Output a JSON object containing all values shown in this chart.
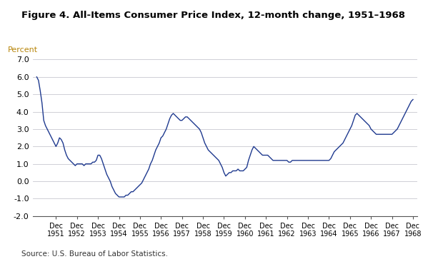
{
  "title": "Figure 4. All-Items Consumer Price Index, 12-month change, 1951–1968",
  "ylabel": "Percent",
  "source": "Source: U.S. Bureau of Labor Statistics.",
  "line_color": "#1f3a8f",
  "background_color": "#ffffff",
  "ylim": [
    -2.0,
    7.0
  ],
  "yticks": [
    -2.0,
    -1.0,
    0.0,
    1.0,
    2.0,
    3.0,
    4.0,
    5.0,
    6.0,
    7.0
  ],
  "ytick_labels": [
    "-2.0",
    "-1.0",
    "0.0",
    "1.0",
    "2.0",
    "3.0",
    "4.0",
    "5.0",
    "6.0",
    "7.0"
  ],
  "xtick_labels": [
    "Dec\n1951",
    "Dec\n1952",
    "Dec\n1953",
    "Dec\n1954",
    "Dec\n1955",
    "Dec\n1956",
    "Dec\n1957",
    "Dec\n1958",
    "Dec\n1959",
    "Dec\n1960",
    "Dec\n1961",
    "Dec\n1962",
    "Dec\n1963",
    "Dec\n1964",
    "Dec\n1965",
    "Dec\n1966",
    "Dec\n1967",
    "Dec\n1968"
  ],
  "values": [
    6.0,
    5.8,
    5.2,
    4.5,
    3.5,
    3.2,
    3.0,
    2.8,
    2.6,
    2.4,
    2.2,
    2.0,
    2.2,
    2.5,
    2.4,
    2.2,
    1.8,
    1.5,
    1.3,
    1.2,
    1.1,
    1.0,
    0.9,
    1.0,
    1.0,
    1.0,
    1.0,
    0.9,
    1.0,
    1.0,
    1.0,
    1.0,
    1.1,
    1.1,
    1.2,
    1.5,
    1.5,
    1.3,
    1.0,
    0.7,
    0.4,
    0.2,
    0.0,
    -0.3,
    -0.5,
    -0.7,
    -0.8,
    -0.9,
    -0.9,
    -0.9,
    -0.9,
    -0.8,
    -0.8,
    -0.7,
    -0.6,
    -0.6,
    -0.5,
    -0.4,
    -0.3,
    -0.2,
    -0.1,
    0.1,
    0.3,
    0.5,
    0.7,
    1.0,
    1.2,
    1.5,
    1.8,
    2.0,
    2.2,
    2.5,
    2.6,
    2.8,
    3.0,
    3.3,
    3.6,
    3.8,
    3.9,
    3.8,
    3.7,
    3.6,
    3.5,
    3.5,
    3.6,
    3.7,
    3.7,
    3.6,
    3.5,
    3.4,
    3.3,
    3.2,
    3.1,
    3.0,
    2.8,
    2.5,
    2.2,
    2.0,
    1.8,
    1.7,
    1.6,
    1.5,
    1.4,
    1.3,
    1.2,
    1.0,
    0.8,
    0.5,
    0.3,
    0.4,
    0.5,
    0.5,
    0.6,
    0.6,
    0.6,
    0.7,
    0.6,
    0.6,
    0.6,
    0.7,
    0.8,
    1.2,
    1.5,
    1.8,
    2.0,
    1.9,
    1.8,
    1.7,
    1.6,
    1.5,
    1.5,
    1.5,
    1.5,
    1.4,
    1.3,
    1.2,
    1.2,
    1.2,
    1.2,
    1.2,
    1.2,
    1.2,
    1.2,
    1.2,
    1.1,
    1.1,
    1.2,
    1.2,
    1.2,
    1.2,
    1.2,
    1.2,
    1.2,
    1.2,
    1.2,
    1.2,
    1.2,
    1.2,
    1.2,
    1.2,
    1.2,
    1.2,
    1.2,
    1.2,
    1.2,
    1.2,
    1.2,
    1.2,
    1.3,
    1.5,
    1.7,
    1.8,
    1.9,
    2.0,
    2.1,
    2.2,
    2.4,
    2.6,
    2.8,
    3.0,
    3.2,
    3.5,
    3.8,
    3.9,
    3.8,
    3.7,
    3.6,
    3.5,
    3.4,
    3.3,
    3.2,
    3.0,
    2.9,
    2.8,
    2.7,
    2.7,
    2.7,
    2.7,
    2.7,
    2.7,
    2.7,
    2.7,
    2.7,
    2.7,
    2.8,
    2.9,
    3.0,
    3.2,
    3.4,
    3.6,
    3.8,
    4.0,
    4.2,
    4.4,
    4.6,
    4.7
  ]
}
